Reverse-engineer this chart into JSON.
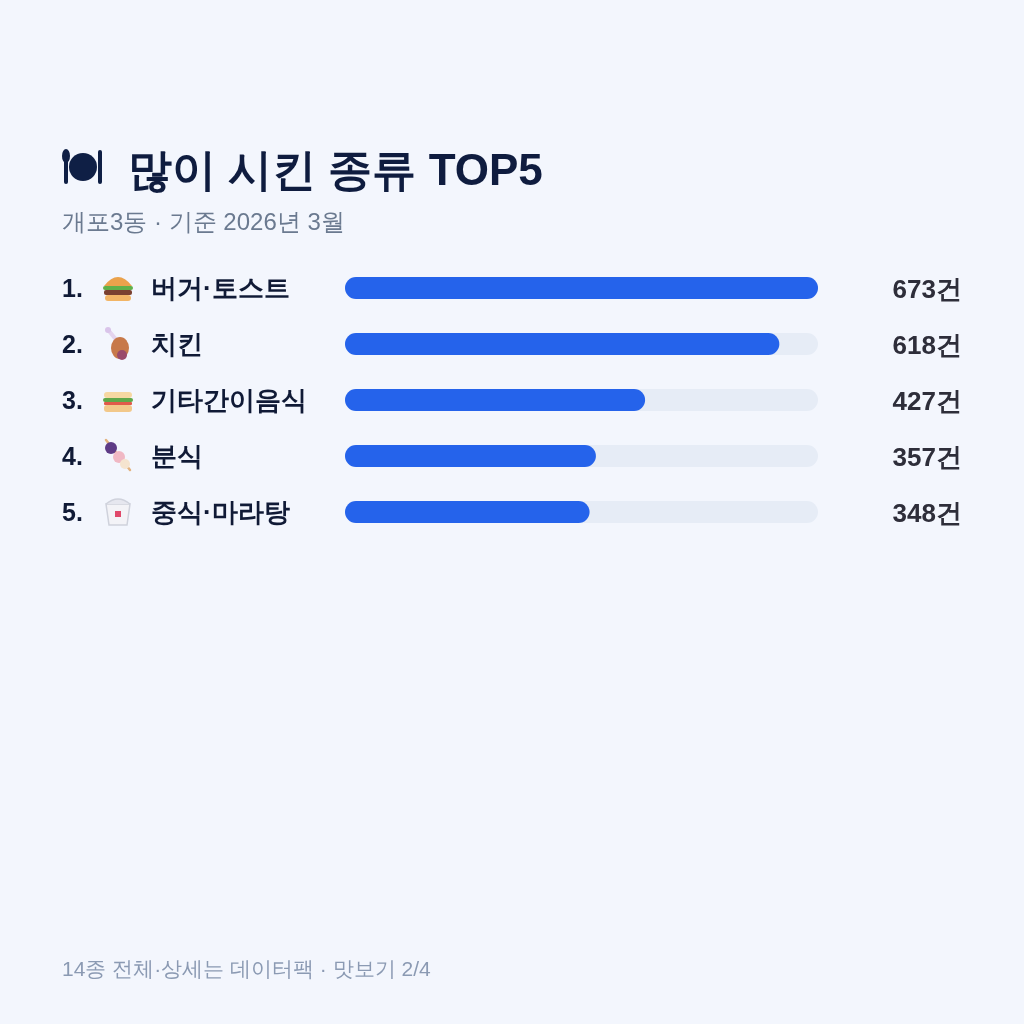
{
  "chart_data": {
    "type": "bar",
    "orientation": "horizontal",
    "title": "많이 시킨 종류 TOP5",
    "subtitle": "개포3동 · 기준 2026년 3월",
    "categories": [
      "1. 버거·토스트",
      "2. 치킨",
      "3. 기타간이음식",
      "4. 분식",
      "5. 중식·마라탕"
    ],
    "values": [
      673,
      618,
      427,
      357,
      348
    ],
    "value_labels": [
      "673건",
      "618건",
      "427건",
      "357건",
      "348건"
    ],
    "color": "#2563eb",
    "xlim": [
      0,
      673
    ],
    "annotations": [
      "14종 전체·상세는 데이터팩 · 맛보기 2/4"
    ]
  }
}
